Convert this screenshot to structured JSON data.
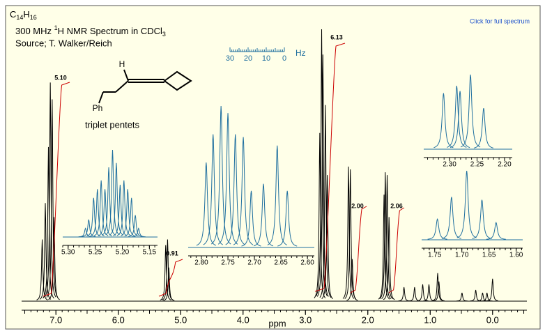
{
  "header": {
    "formula": [
      "C",
      "14",
      "H",
      "16"
    ],
    "title": [
      "300 MHz ",
      "1",
      "H NMR Spectrum in CDCl",
      "3"
    ],
    "source": "Source; T. Walker/Reich",
    "link": "Click for full spectrum"
  },
  "structure": {
    "h": "H",
    "ph": "Ph",
    "caption": "triplet pentets"
  },
  "hz_scale": {
    "ticks": [
      30,
      20,
      10,
      0
    ],
    "label": "Hz"
  },
  "integrals": [
    "5.10",
    "0.91",
    "6.13",
    "2.00",
    "2.06"
  ],
  "chart_data": [
    {
      "type": "spectrum",
      "xlabel": "ppm",
      "color": "#000000",
      "xlim": [
        7.55,
        -0.55
      ],
      "ylim": [
        0,
        100
      ],
      "minor_step": 0.1,
      "xticks": [
        {
          "value": 7,
          "label": "7.0"
        },
        {
          "value": 6,
          "label": "6.0"
        },
        {
          "value": 5,
          "label": "5.0"
        },
        {
          "value": 4,
          "label": "4.0"
        },
        {
          "value": 3,
          "label": "3.0"
        },
        {
          "value": 2,
          "label": "2.0"
        },
        {
          "value": 1,
          "label": "1.0"
        },
        {
          "value": 0,
          "label": "0.0"
        }
      ],
      "x": [
        7.22,
        7.17,
        7.12,
        7.09,
        7.06,
        7.03,
        5.24,
        5.21,
        5.19,
        2.77,
        2.74,
        2.72,
        2.68,
        2.65,
        2.31,
        2.28,
        2.25,
        1.74,
        1.72,
        1.69,
        1.66,
        1.42,
        1.25,
        1.12,
        1.02,
        0.88,
        0.86,
        0.49,
        0.27,
        0.16,
        0.09,
        0.0
      ],
      "values": [
        22,
        35,
        55,
        78,
        72,
        30,
        20,
        22,
        12,
        60,
        97,
        88,
        70,
        45,
        48,
        47,
        15,
        38,
        46,
        45,
        30,
        5,
        5,
        6,
        6,
        10,
        7,
        3,
        4,
        3,
        3,
        8
      ]
    },
    {
      "type": "spectrum",
      "color": "#1f6f9f",
      "xlim": [
        5.31,
        5.135
      ],
      "ylim": [
        0,
        100
      ],
      "minor_step": 0.01,
      "xticks": [
        {
          "value": 5.3,
          "label": "5.30"
        },
        5.25,
        {
          "value": 5.2,
          "label": "5.20"
        },
        5.15
      ],
      "x": [
        5.268,
        5.262,
        5.253,
        5.246,
        5.239,
        5.232,
        5.225,
        5.218,
        5.211,
        5.204,
        5.197,
        5.19,
        5.183,
        5.176,
        5.17
      ],
      "values": [
        10,
        20,
        45,
        55,
        65,
        55,
        80,
        100,
        85,
        60,
        65,
        55,
        45,
        25,
        10
      ]
    },
    {
      "type": "spectrum",
      "color": "#1f6f9f",
      "xlim": [
        2.825,
        2.587
      ],
      "ylim": [
        0,
        100
      ],
      "minor_step": 0.01,
      "xticks": [
        {
          "value": 2.8,
          "label": "2.80"
        },
        2.75,
        {
          "value": 2.7,
          "label": "2.70"
        },
        2.65,
        {
          "value": 2.6,
          "label": "2.60"
        }
      ],
      "x": [
        2.791,
        2.778,
        2.763,
        2.75,
        2.736,
        2.721,
        2.706,
        2.683,
        2.657,
        2.638
      ],
      "values": [
        60,
        80,
        100,
        95,
        80,
        78,
        40,
        45,
        72,
        40
      ]
    },
    {
      "type": "spectrum",
      "color": "#1f6f9f",
      "xlim": [
        2.347,
        2.186
      ],
      "ylim": [
        0,
        100
      ],
      "minor_step": 0.01,
      "xticks": [
        {
          "value": 2.3,
          "label": "2.30"
        },
        2.25,
        {
          "value": 2.2,
          "label": "2.20"
        }
      ],
      "x": [
        2.311,
        2.287,
        2.281,
        2.262,
        2.238
      ],
      "values": [
        75,
        85,
        78,
        100,
        55
      ]
    },
    {
      "type": "spectrum",
      "color": "#1f6f9f",
      "xlim": [
        1.774,
        1.588
      ],
      "ylim": [
        0,
        100
      ],
      "minor_step": 0.01,
      "xticks": [
        1.75,
        {
          "value": 1.7,
          "label": "1.70"
        },
        1.65,
        {
          "value": 1.6,
          "label": "1.60"
        }
      ],
      "x": [
        1.745,
        1.719,
        1.691,
        1.663,
        1.637
      ],
      "values": [
        30,
        62,
        100,
        58,
        25
      ]
    }
  ]
}
